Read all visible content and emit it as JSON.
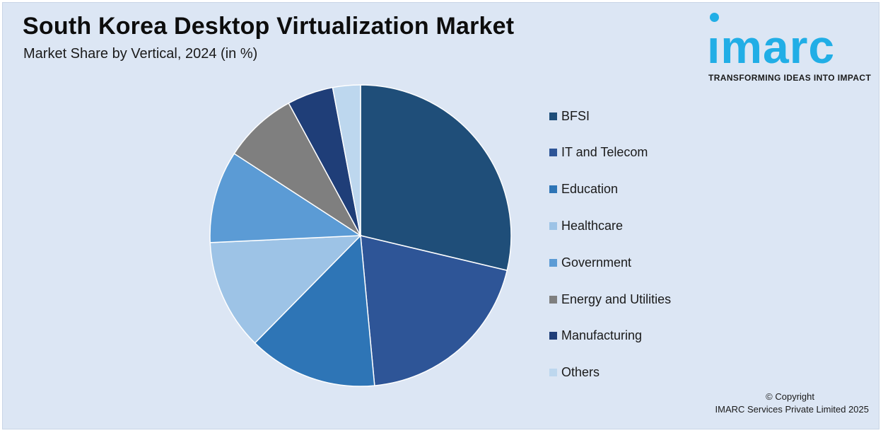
{
  "header": {
    "title": "South Korea Desktop Virtualization Market",
    "subtitle": "Market Share by Vertical, 2024 (in %)"
  },
  "logo": {
    "word": "ımarc",
    "tagline": "TRANSFORMING IDEAS INTO IMPACT",
    "color": "#21aee6"
  },
  "chart_data": {
    "type": "pie",
    "title": "South Korea Desktop Virtualization Market",
    "subtitle": "Market Share by Vertical, 2024 (in %)",
    "categories": [
      "BFSI",
      "IT and Telecom",
      "Education",
      "Healthcare",
      "Government",
      "Energy and Utilities",
      "Manufacturing",
      "Others"
    ],
    "values": [
      29,
      20,
      14,
      12,
      10,
      8,
      5,
      3
    ],
    "colors": [
      "#1f4e79",
      "#2e5597",
      "#2e75b6",
      "#9dc3e6",
      "#5b9bd5",
      "#7f7f7f",
      "#1f3e78",
      "#bdd7ee"
    ],
    "start_angle": "12 o'clock",
    "direction": "clockwise",
    "legend_placement": "right"
  },
  "footer": {
    "copyright_line1": "© Copyright",
    "copyright_line2": "IMARC Services Private Limited 2025"
  }
}
